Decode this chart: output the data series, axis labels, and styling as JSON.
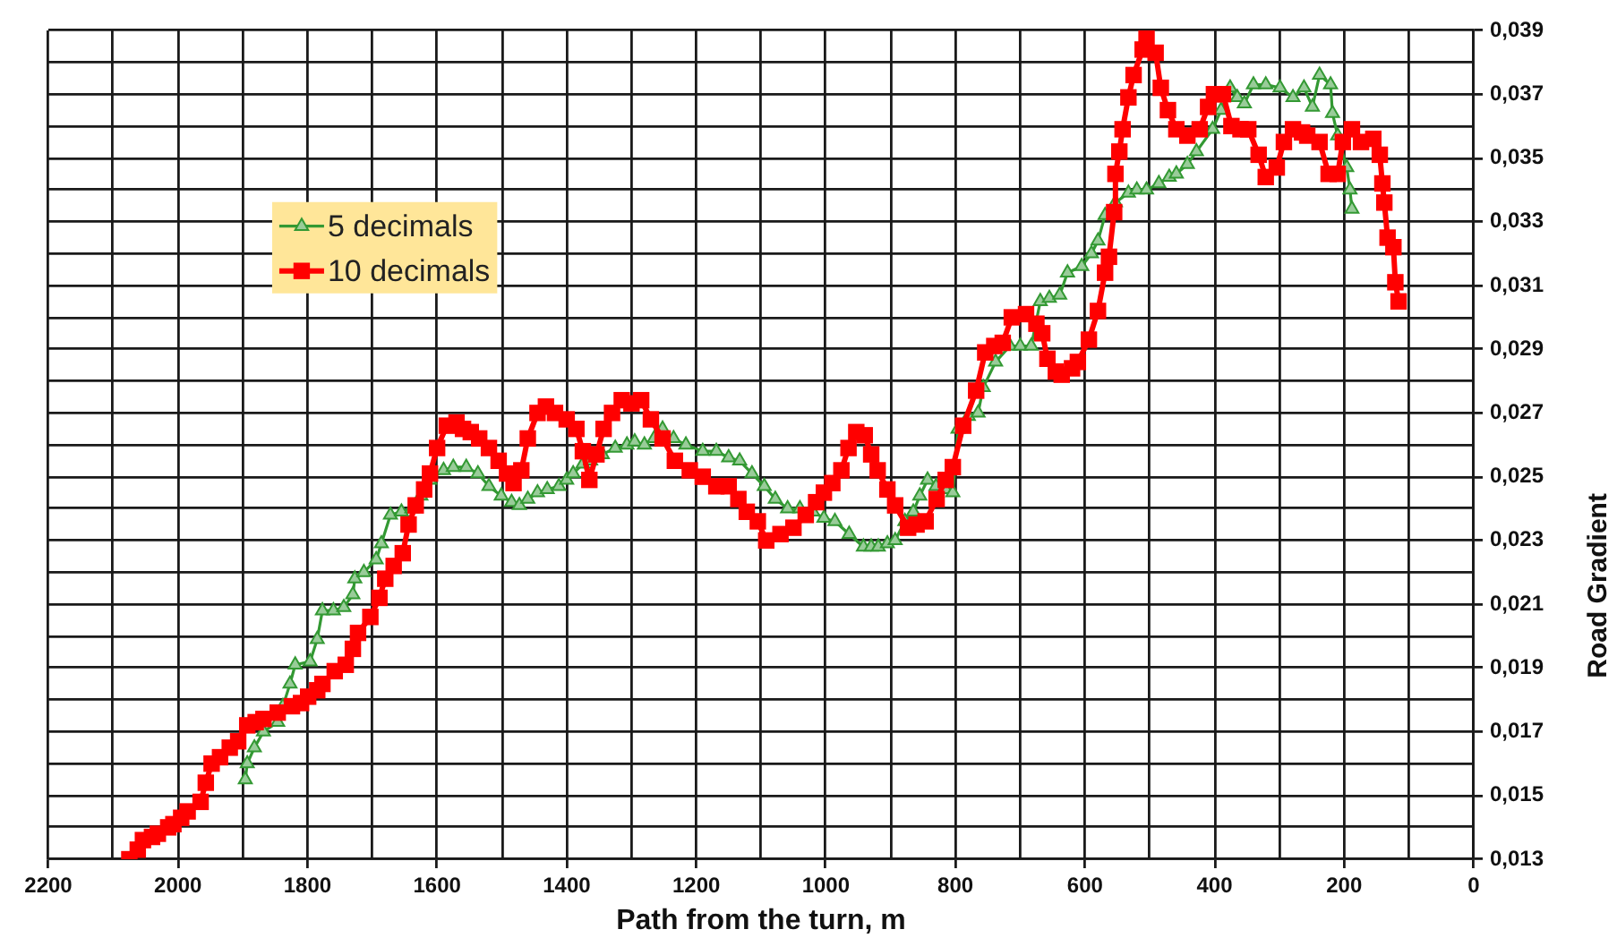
{
  "chart_data": {
    "type": "line",
    "xlabel": "Path from the turn, m",
    "ylabel": "Road Gradient",
    "xlim": [
      2200,
      0
    ],
    "xticks": [
      2200,
      {
        "value": 2100,
        "label": null
      },
      2000,
      {
        "value": 1900,
        "label": null
      },
      1800,
      {
        "value": 1700,
        "label": null
      },
      1600,
      {
        "value": 1500,
        "label": null
      },
      1400,
      {
        "value": 1300,
        "label": null
      },
      1200,
      {
        "value": 1100,
        "label": null
      },
      1000,
      {
        "value": 900,
        "label": null
      },
      800,
      {
        "value": 700,
        "label": null
      },
      600,
      {
        "value": 500,
        "label": null
      },
      400,
      {
        "value": 300,
        "label": null
      },
      200,
      {
        "value": 100,
        "label": null
      },
      0
    ],
    "ylim": [
      0.013,
      0.039
    ],
    "yticks": [
      {
        "value": 0.013,
        "label": "0,013"
      },
      {
        "value": 0.014,
        "label": null
      },
      {
        "value": 0.015,
        "label": "0,015"
      },
      {
        "value": 0.016,
        "label": null
      },
      {
        "value": 0.017,
        "label": "0,017"
      },
      {
        "value": 0.018,
        "label": null
      },
      {
        "value": 0.019,
        "label": "0,019"
      },
      {
        "value": 0.02,
        "label": null
      },
      {
        "value": 0.021,
        "label": "0,021"
      },
      {
        "value": 0.022,
        "label": null
      },
      {
        "value": 0.023,
        "label": "0,023"
      },
      {
        "value": 0.024,
        "label": null
      },
      {
        "value": 0.025,
        "label": "0,025"
      },
      {
        "value": 0.026,
        "label": null
      },
      {
        "value": 0.027,
        "label": "0,027"
      },
      {
        "value": 0.028,
        "label": null
      },
      {
        "value": 0.029,
        "label": "0,029"
      },
      {
        "value": 0.03,
        "label": null
      },
      {
        "value": 0.031,
        "label": "0,031"
      },
      {
        "value": 0.032,
        "label": null
      },
      {
        "value": 0.033,
        "label": "0,033"
      },
      {
        "value": 0.034,
        "label": null
      },
      {
        "value": 0.035,
        "label": "0,035"
      },
      {
        "value": 0.036,
        "label": null
      },
      {
        "value": 0.037,
        "label": "0,037"
      },
      {
        "value": 0.038,
        "label": null
      },
      {
        "value": 0.039,
        "label": "0,039"
      }
    ],
    "grid": true,
    "legend": "top left",
    "series": [
      {
        "name": "5 decimals",
        "color": "#339933",
        "marker": "triangle",
        "x": [
          1896,
          1893,
          1882,
          1868,
          1846,
          1838,
          1827,
          1819,
          1796,
          1785,
          1777,
          1760,
          1744,
          1730,
          1727,
          1713,
          1694,
          1686,
          1672,
          1655,
          1639,
          1625,
          1611,
          1590,
          1575,
          1555,
          1537,
          1520,
          1501,
          1485,
          1473,
          1460,
          1445,
          1430,
          1412,
          1400,
          1390,
          1375,
          1363,
          1345,
          1325,
          1307,
          1295,
          1280,
          1265,
          1252,
          1235,
          1216,
          1190,
          1169,
          1150,
          1133,
          1114,
          1095,
          1078,
          1059,
          1040,
          1020,
          1003,
          986,
          964,
          942,
          930,
          919,
          905,
          893,
          878,
          865,
          855,
          843,
          830,
          815,
          804,
          796,
          780,
          765,
          757,
          738,
          716,
          700,
          683,
          669,
          655,
          639,
          627,
          605,
          590,
          580,
          569,
          553,
          533,
          520,
          505,
          486,
          470,
          459,
          442,
          428,
          403,
          390,
          376,
          365,
          354,
          340,
          321,
          299,
          279,
          262,
          249,
          238,
          221,
          218,
          210,
          196,
          191,
          188
        ],
        "values": [
          0.0155,
          0.016,
          0.0165,
          0.017,
          0.0173,
          0.0178,
          0.0185,
          0.0191,
          0.0192,
          0.0199,
          0.0208,
          0.0208,
          0.0209,
          0.0213,
          0.0218,
          0.022,
          0.0224,
          0.0229,
          0.0238,
          0.0239,
          0.024,
          0.0244,
          0.0249,
          0.0252,
          0.0253,
          0.0253,
          0.0251,
          0.0247,
          0.0244,
          0.0242,
          0.0241,
          0.0243,
          0.0245,
          0.0246,
          0.0247,
          0.0249,
          0.0251,
          0.0254,
          0.0255,
          0.0257,
          0.0259,
          0.026,
          0.0261,
          0.026,
          0.0262,
          0.0265,
          0.0262,
          0.026,
          0.0258,
          0.0258,
          0.0256,
          0.0255,
          0.0251,
          0.0247,
          0.0243,
          0.024,
          0.024,
          0.0239,
          0.0237,
          0.0236,
          0.0232,
          0.0228,
          0.0228,
          0.0228,
          0.0229,
          0.023,
          0.0236,
          0.0239,
          0.0244,
          0.0249,
          0.0247,
          0.0246,
          0.0245,
          0.0265,
          0.0269,
          0.027,
          0.0278,
          0.0286,
          0.0291,
          0.0291,
          0.0291,
          0.0305,
          0.0306,
          0.0307,
          0.0314,
          0.0316,
          0.032,
          0.0324,
          0.0332,
          0.0336,
          0.0339,
          0.034,
          0.034,
          0.0342,
          0.0344,
          0.0345,
          0.0348,
          0.0352,
          0.0359,
          0.0365,
          0.0372,
          0.0369,
          0.0367,
          0.0373,
          0.0373,
          0.0372,
          0.0369,
          0.0372,
          0.0366,
          0.0376,
          0.0373,
          0.0364,
          0.0357,
          0.0347,
          0.034,
          0.0334
        ]
      },
      {
        "name": "10 decimals",
        "color": "#ff0000",
        "marker": "square",
        "x": [
          2075,
          2062,
          2054,
          2040,
          2031,
          2015,
          2007,
          1995,
          1985,
          1965,
          1957,
          1948,
          1935,
          1920,
          1907,
          1893,
          1880,
          1868,
          1846,
          1824,
          1810,
          1799,
          1785,
          1777,
          1758,
          1741,
          1730,
          1722,
          1703,
          1689,
          1680,
          1667,
          1653,
          1644,
          1633,
          1620,
          1611,
          1600,
          1585,
          1570,
          1560,
          1548,
          1535,
          1520,
          1505,
          1492,
          1482,
          1470,
          1460,
          1445,
          1432,
          1418,
          1400,
          1385,
          1375,
          1365,
          1354,
          1343,
          1330,
          1315,
          1300,
          1285,
          1270,
          1252,
          1233,
          1210,
          1190,
          1169,
          1150,
          1135,
          1122,
          1105,
          1092,
          1070,
          1050,
          1031,
          1015,
          1003,
          990,
          976,
          965,
          953,
          940,
          930,
          920,
          905,
          893,
          873,
          860,
          846,
          829,
          815,
          804,
          788,
          768,
          754,
          740,
          727,
          713,
          691,
          675,
          666,
          658,
          645,
          636,
          620,
          611,
          594,
          580,
          569,
          563,
          555,
          553,
          547,
          542,
          533,
          525,
          511,
          505,
          491,
          483,
          472,
          459,
          442,
          423,
          410,
          401,
          387,
          374,
          360,
          348,
          332,
          321,
          304,
          293,
          279,
          265,
          257,
          238,
          224,
          210,
          202,
          188,
          174,
          155,
          145,
          141,
          138,
          133,
          124,
          121,
          116
        ],
        "values": [
          0.013,
          0.0133,
          0.0136,
          0.0137,
          0.0138,
          0.014,
          0.0141,
          0.0143,
          0.0145,
          0.0148,
          0.0154,
          0.016,
          0.0162,
          0.0165,
          0.0167,
          0.0172,
          0.0173,
          0.0174,
          0.0176,
          0.0178,
          0.0179,
          0.0181,
          0.0183,
          0.0185,
          0.0189,
          0.0191,
          0.0196,
          0.0201,
          0.0206,
          0.0212,
          0.0218,
          0.0222,
          0.0226,
          0.0235,
          0.0241,
          0.0246,
          0.0251,
          0.0259,
          0.0266,
          0.0267,
          0.0265,
          0.0264,
          0.0262,
          0.0259,
          0.0255,
          0.0251,
          0.0248,
          0.0252,
          0.0262,
          0.027,
          0.0272,
          0.027,
          0.0268,
          0.0265,
          0.0258,
          0.0249,
          0.0257,
          0.0265,
          0.027,
          0.0274,
          0.0273,
          0.0274,
          0.0268,
          0.0262,
          0.0255,
          0.0252,
          0.025,
          0.0247,
          0.0247,
          0.0243,
          0.0239,
          0.0236,
          0.023,
          0.0232,
          0.0234,
          0.0238,
          0.0242,
          0.0245,
          0.0248,
          0.0252,
          0.0259,
          0.0264,
          0.0263,
          0.0257,
          0.0252,
          0.0246,
          0.0241,
          0.0234,
          0.0235,
          0.0236,
          0.0243,
          0.0249,
          0.0253,
          0.0266,
          0.0277,
          0.0289,
          0.0291,
          0.0292,
          0.03,
          0.0301,
          0.0298,
          0.0295,
          0.0287,
          0.0283,
          0.0282,
          0.0284,
          0.0286,
          0.0293,
          0.0302,
          0.0314,
          0.0319,
          0.0333,
          0.0345,
          0.0352,
          0.0359,
          0.0369,
          0.0376,
          0.0384,
          0.0388,
          0.0383,
          0.0372,
          0.0365,
          0.0359,
          0.0357,
          0.0359,
          0.0366,
          0.037,
          0.037,
          0.036,
          0.0359,
          0.0359,
          0.0351,
          0.0344,
          0.0347,
          0.0355,
          0.0359,
          0.0358,
          0.0357,
          0.0355,
          0.0345,
          0.0345,
          0.0355,
          0.0359,
          0.0355,
          0.0356,
          0.0351,
          0.0342,
          0.0336,
          0.0325,
          0.0322,
          0.0311,
          0.0305
        ]
      }
    ]
  }
}
